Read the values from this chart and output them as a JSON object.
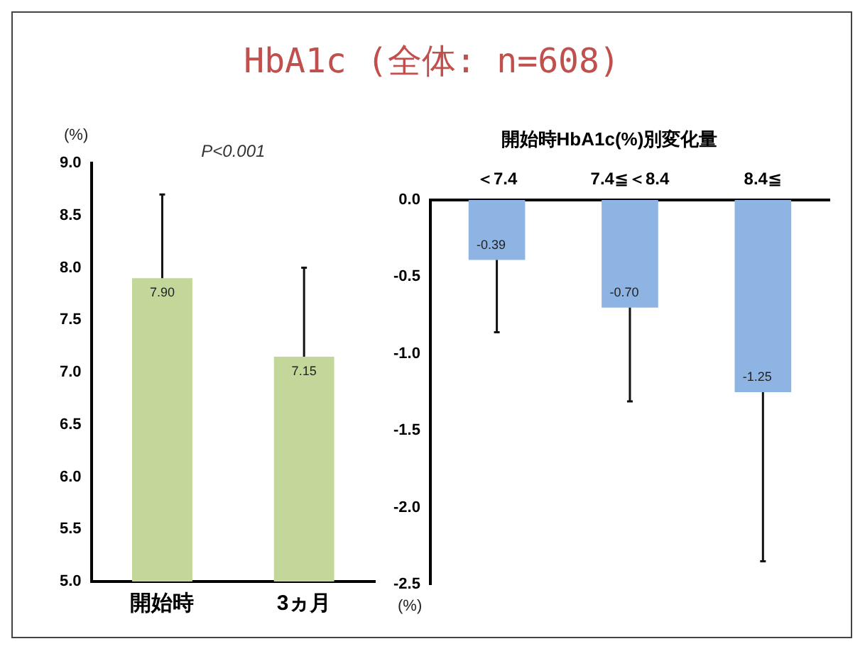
{
  "chart_data": [
    {
      "type": "bar",
      "title": "HbA1c (全体: n=608)",
      "ylabel": "(%)",
      "categories": [
        "開始時",
        "3ヵ月"
      ],
      "values": [
        7.9,
        7.15
      ],
      "value_labels": [
        "7.90",
        "7.15"
      ],
      "errors": [
        [
          7.9,
          8.7
        ],
        [
          7.15,
          8.0
        ]
      ],
      "color": "#c4d79b",
      "ylim": [
        5.0,
        9.0
      ],
      "yticks": [
        {
          "value": 5,
          "label": "5.0"
        },
        5.5,
        {
          "value": 6,
          "label": "6.0"
        },
        6.5,
        {
          "value": 7,
          "label": "7.0"
        },
        7.5,
        {
          "value": 8,
          "label": "8.0"
        },
        8.5,
        {
          "value": 9,
          "label": "9.0"
        }
      ],
      "annotations": [
        "P<0.001"
      ]
    },
    {
      "type": "bar",
      "title": "開始時HbA1c(%)別変化量",
      "ylabel": "(%)",
      "categories": [
        "＜7.4",
        "7.4≦＜8.4",
        "8.4≦"
      ],
      "values": [
        -0.39,
        -0.7,
        -1.25
      ],
      "value_labels": [
        "-0.39",
        "-0.70",
        "-1.25"
      ],
      "errors": [
        [
          -0.86,
          -0.39
        ],
        [
          -1.31,
          -0.7
        ],
        [
          -2.35,
          -1.25
        ]
      ],
      "color": "#8db4e2",
      "ylim": [
        -2.5,
        0.0
      ],
      "yticks": [
        {
          "value": -2.5,
          "label": "-2.5"
        },
        {
          "value": -2,
          "label": "-2.0"
        },
        -1.5,
        {
          "value": -1,
          "label": "-1.0"
        },
        -0.5,
        {
          "value": 0,
          "label": "0.0"
        }
      ]
    }
  ]
}
